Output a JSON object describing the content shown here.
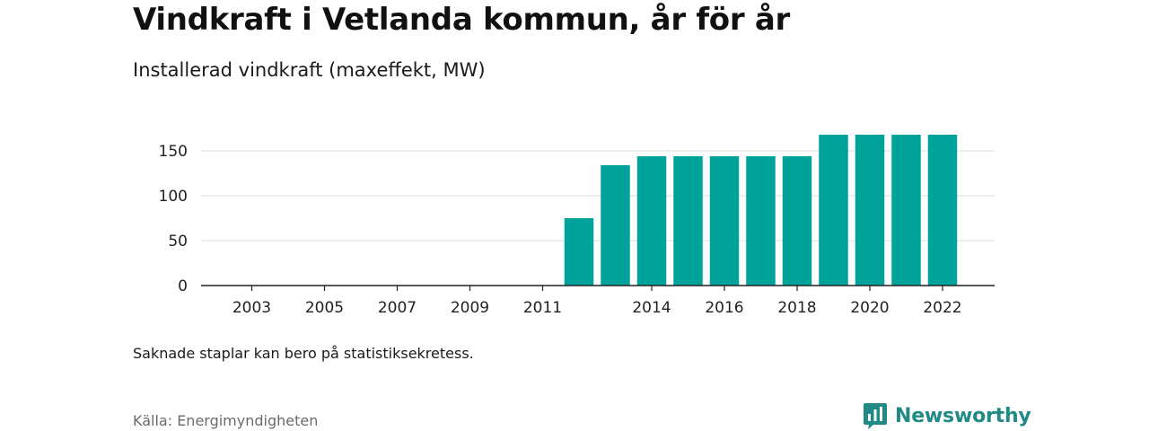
{
  "header": {
    "title": "Vindkraft i Vetlanda kommun, år för år",
    "subtitle": "Installerad vindkraft (maxeffekt, MW)"
  },
  "footer": {
    "note": "Saknade staplar kan bero på statistiksekretess.",
    "source": "Källa: Energimyndigheten",
    "brand": "Newsworthy",
    "brand_icon": "newsworthy-logo-icon"
  },
  "colors": {
    "bar": "#00a39a",
    "grid": "#dddddd",
    "axis": "#222222",
    "brand": "#1f8a86"
  },
  "chart_data": {
    "type": "bar",
    "title": "Vindkraft i Vetlanda kommun, år för år",
    "subtitle": "Installerad vindkraft (maxeffekt, MW)",
    "xlabel": "",
    "ylabel": "",
    "categories": [
      2002,
      2003,
      2004,
      2005,
      2006,
      2007,
      2008,
      2009,
      2010,
      2011,
      2012,
      2013,
      2014,
      2015,
      2016,
      2017,
      2018,
      2019,
      2020,
      2021,
      2022
    ],
    "values": [
      0,
      0,
      0,
      0,
      0,
      0,
      0,
      0,
      0,
      0,
      75,
      134,
      144,
      144,
      144,
      144,
      144,
      168,
      168,
      168,
      168
    ],
    "x_tick_labels": [
      "2003",
      "2005",
      "2007",
      "2009",
      "2011",
      "2014",
      "2016",
      "2018",
      "2020",
      "2022"
    ],
    "y_ticks": [
      0,
      50,
      100,
      150
    ],
    "ylim": [
      0,
      175
    ],
    "grid": true,
    "legend": "none"
  }
}
